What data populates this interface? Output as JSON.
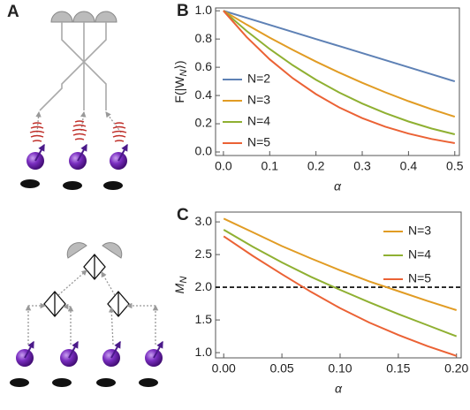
{
  "panel_a": {
    "label": "A"
  },
  "chart_data": [
    {
      "type": "line",
      "panel_label": "B",
      "ylabel": {
        "text": "F(|W",
        "sub": "N",
        "after": "⟩)"
      },
      "xlabel": "α",
      "x": [
        0,
        0.05,
        0.1,
        0.15,
        0.2,
        0.25,
        0.3,
        0.35,
        0.4,
        0.45,
        0.5
      ],
      "series": [
        {
          "name": "N=2",
          "color": "#5e81b5",
          "values": [
            1,
            0.95,
            0.9,
            0.85,
            0.8,
            0.75,
            0.7,
            0.65,
            0.6,
            0.55,
            0.5
          ]
        },
        {
          "name": "N=3",
          "color": "#e19c24",
          "values": [
            1,
            0.9025,
            0.81,
            0.7225,
            0.64,
            0.5625,
            0.49,
            0.4225,
            0.36,
            0.3025,
            0.25
          ]
        },
        {
          "name": "N=4",
          "color": "#8fb032",
          "values": [
            1,
            0.857,
            0.729,
            0.614,
            0.512,
            0.422,
            0.343,
            0.275,
            0.216,
            0.166,
            0.125
          ]
        },
        {
          "name": "N=5",
          "color": "#eb6235",
          "values": [
            1,
            0.815,
            0.656,
            0.522,
            0.41,
            0.316,
            0.24,
            0.179,
            0.13,
            0.092,
            0.0625
          ]
        }
      ],
      "xlim": [
        -0.017,
        0.51
      ],
      "ylim": [
        -0.025,
        1.02
      ],
      "xticks": [
        {
          "value": 0,
          "label": "0.0"
        },
        0.1,
        0.2,
        0.3,
        0.4,
        0.5
      ],
      "yticks": [
        {
          "value": 0,
          "label": "0.0"
        },
        0.2,
        0.4,
        0.6,
        0.8,
        {
          "value": 1,
          "label": "1.0"
        }
      ],
      "legend": "lower left",
      "grid": false
    },
    {
      "type": "line",
      "panel_label": "C",
      "ylabel": {
        "text": "M",
        "sub": "N",
        "after": ""
      },
      "xlabel": "α",
      "x": [
        0,
        0.025,
        0.05,
        0.075,
        0.1,
        0.125,
        0.15,
        0.175,
        0.2
      ],
      "series": [
        {
          "name": "N=3",
          "color": "#e19c24",
          "values": [
            3.05,
            2.84,
            2.63,
            2.44,
            2.26,
            2.09,
            1.94,
            1.79,
            1.65
          ]
        },
        {
          "name": "N=4",
          "color": "#8fb032",
          "values": [
            2.88,
            2.62,
            2.38,
            2.16,
            1.96,
            1.77,
            1.59,
            1.42,
            1.25
          ]
        },
        {
          "name": "N=5",
          "color": "#eb6235",
          "values": [
            2.78,
            2.48,
            2.2,
            1.93,
            1.68,
            1.46,
            1.27,
            1.1,
            0.95
          ]
        }
      ],
      "hline": 2,
      "xlim": [
        -0.007,
        0.204
      ],
      "ylim": [
        0.92,
        3.15
      ],
      "xticks": [
        {
          "value": 0,
          "label": "0.00"
        },
        0.05,
        {
          "value": 0.1,
          "label": "0.10"
        },
        0.15,
        {
          "value": 0.2,
          "label": "0.20"
        }
      ],
      "yticks": [
        {
          "value": 1,
          "label": "1.0"
        },
        1.5,
        {
          "value": 2,
          "label": "2.0"
        },
        2.5,
        {
          "value": 3,
          "label": "3.0"
        }
      ],
      "legend": "upper right",
      "grid": false
    }
  ]
}
